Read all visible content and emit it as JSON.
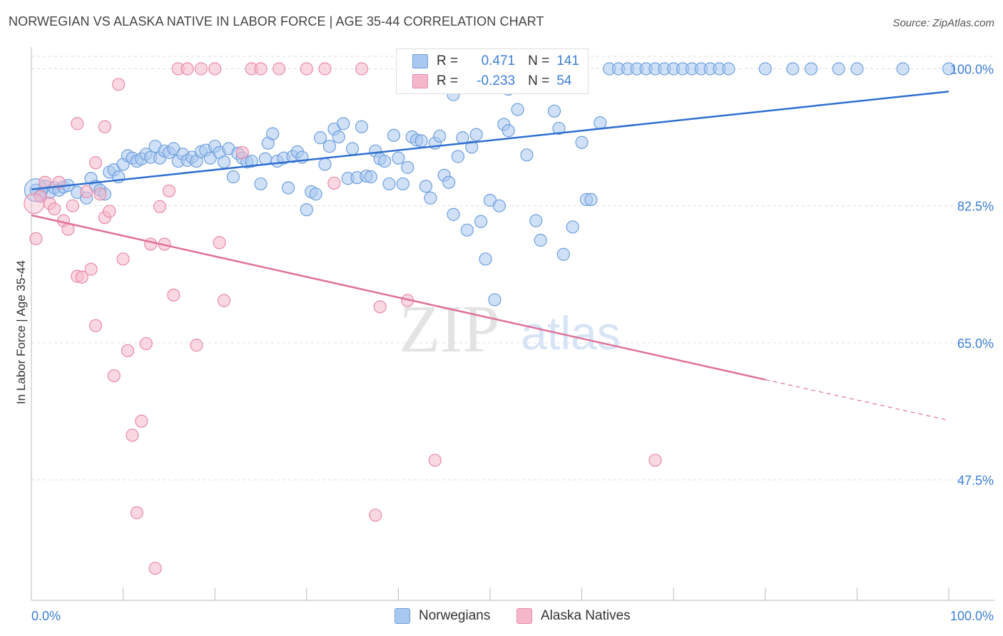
{
  "title": "NORWEGIAN VS ALASKA NATIVE IN LABOR FORCE | AGE 35-44 CORRELATION CHART",
  "source": "Source: ZipAtlas.com",
  "watermark": {
    "zip": "ZIP",
    "atlas": "atlas"
  },
  "legend": {
    "r_label": "R =",
    "n_label": "N =",
    "norwegians": {
      "r": "0.471",
      "n": "141"
    },
    "alaska": {
      "r": "-0.233",
      "n": "54"
    }
  },
  "colors": {
    "blue_fill": "#a9c8f0",
    "blue_stroke": "#6e9fdc",
    "blue_line": "#2f6fd0",
    "pink_fill": "#f5b8cb",
    "pink_stroke": "#e88aa8",
    "pink_line": "#e0719a",
    "tick_label": "#3d7fd6",
    "grid": "#dddddd"
  },
  "chart_data": {
    "type": "scatter",
    "title": "NORWEGIAN VS ALASKA NATIVE IN LABOR FORCE | AGE 35-44 CORRELATION CHART",
    "xlabel": "",
    "ylabel": "In Labor Force | Age 35-44",
    "xlim": [
      0,
      100
    ],
    "ylim": [
      32,
      102
    ],
    "x_tick_labels": [
      "0.0%",
      "100.0%"
    ],
    "y_ticks": [
      100,
      82.5,
      65,
      47.5
    ],
    "y_tick_labels": [
      "100.0%",
      "82.5%",
      "65.0%",
      "47.5%"
    ],
    "grid": true,
    "legend_position": "top-center",
    "series": [
      {
        "name": "Norwegians",
        "trend": {
          "x0": 0,
          "y0": 84.6,
          "x1": 100,
          "y1": 97.1
        },
        "points": [
          [
            0.5,
            84.5
          ],
          [
            1,
            83.8
          ],
          [
            1.5,
            85
          ],
          [
            2,
            84.2
          ],
          [
            2.5,
            84.8
          ],
          [
            3,
            84.5
          ],
          [
            3.5,
            84.9
          ],
          [
            4,
            85.1
          ],
          [
            5,
            84.2
          ],
          [
            6,
            83.5
          ],
          [
            6.5,
            86
          ],
          [
            7,
            85
          ],
          [
            7.5,
            84.5
          ],
          [
            8,
            84
          ],
          [
            8.5,
            86.8
          ],
          [
            9,
            87.1
          ],
          [
            9.5,
            86.2
          ],
          [
            10,
            87.8
          ],
          [
            10.5,
            88.9
          ],
          [
            11,
            88.6
          ],
          [
            11.5,
            88.2
          ],
          [
            12,
            88.5
          ],
          [
            12.5,
            89.1
          ],
          [
            13,
            88.7
          ],
          [
            13.5,
            90.1
          ],
          [
            14,
            88.6
          ],
          [
            14.5,
            89.5
          ],
          [
            15,
            89.3
          ],
          [
            15.5,
            89.8
          ],
          [
            16,
            88.2
          ],
          [
            16.5,
            89.1
          ],
          [
            17,
            88.3
          ],
          [
            17.5,
            88.7
          ],
          [
            18,
            88.2
          ],
          [
            18.5,
            89.4
          ],
          [
            19,
            89.6
          ],
          [
            19.5,
            88.6
          ],
          [
            20,
            90.1
          ],
          [
            20.5,
            89.3
          ],
          [
            21,
            88.1
          ],
          [
            21.5,
            89.8
          ],
          [
            22,
            86.2
          ],
          [
            22.5,
            89.2
          ],
          [
            23,
            88.6
          ],
          [
            23.5,
            88.1
          ],
          [
            24,
            88.2
          ],
          [
            25,
            85.3
          ],
          [
            25.5,
            88.5
          ],
          [
            25.8,
            90.5
          ],
          [
            26.3,
            91.7
          ],
          [
            26.8,
            88.2
          ],
          [
            27.5,
            88.6
          ],
          [
            28,
            84.8
          ],
          [
            28.5,
            88.8
          ],
          [
            29,
            89.4
          ],
          [
            29.5,
            88.7
          ],
          [
            30,
            82
          ],
          [
            30.5,
            84.3
          ],
          [
            31,
            84
          ],
          [
            31.5,
            91.2
          ],
          [
            32,
            87.8
          ],
          [
            32.5,
            90.1
          ],
          [
            33,
            92.3
          ],
          [
            33.5,
            91.3
          ],
          [
            34,
            93
          ],
          [
            34.5,
            86
          ],
          [
            35,
            89.8
          ],
          [
            35.5,
            86.1
          ],
          [
            36,
            92.6
          ],
          [
            36.5,
            86.3
          ],
          [
            37,
            86.2
          ],
          [
            37.5,
            89.5
          ],
          [
            38,
            88.5
          ],
          [
            38.5,
            88.2
          ],
          [
            39,
            85.3
          ],
          [
            39.5,
            91.5
          ],
          [
            40,
            88.6
          ],
          [
            40.5,
            85.3
          ],
          [
            41,
            87.4
          ],
          [
            41.5,
            91.3
          ],
          [
            42,
            90.9
          ],
          [
            42.5,
            90.8
          ],
          [
            43,
            85
          ],
          [
            43.5,
            83.5
          ],
          [
            44,
            90.5
          ],
          [
            44.5,
            91.4
          ],
          [
            45,
            86.4
          ],
          [
            45.5,
            85.5
          ],
          [
            46,
            81.4
          ],
          [
            46.5,
            88.8
          ],
          [
            47,
            91.2
          ],
          [
            47.5,
            79.4
          ],
          [
            48,
            90
          ],
          [
            48.5,
            91.6
          ],
          [
            49,
            80.5
          ],
          [
            49.5,
            75.7
          ],
          [
            50,
            83.2
          ],
          [
            50.5,
            70.5
          ],
          [
            51,
            82.5
          ],
          [
            51.5,
            92.9
          ],
          [
            52,
            92.1
          ],
          [
            53,
            94.8
          ],
          [
            54,
            89
          ],
          [
            55,
            80.6
          ],
          [
            55.5,
            78.1
          ],
          [
            57,
            94.6
          ],
          [
            57.5,
            92.4
          ],
          [
            58,
            76.3
          ],
          [
            59,
            79.8
          ],
          [
            60,
            90.6
          ],
          [
            60.5,
            83.3
          ],
          [
            61,
            83.3
          ],
          [
            62,
            93.1
          ],
          [
            63,
            100
          ],
          [
            64,
            100
          ],
          [
            65,
            100
          ],
          [
            66,
            100
          ],
          [
            67,
            100
          ],
          [
            68,
            100
          ],
          [
            69,
            100
          ],
          [
            70,
            100
          ],
          [
            71,
            100
          ],
          [
            72,
            100
          ],
          [
            73,
            100
          ],
          [
            74,
            100
          ],
          [
            75,
            100
          ],
          [
            76,
            100
          ],
          [
            80,
            100
          ],
          [
            83,
            100
          ],
          [
            85,
            100
          ],
          [
            88,
            100
          ],
          [
            90,
            100
          ],
          [
            95,
            100
          ],
          [
            100,
            100
          ],
          [
            46,
            96.7
          ],
          [
            45.5,
            99.5
          ],
          [
            48,
            97.8
          ],
          [
            49,
            98.4
          ],
          [
            50,
            99.1
          ],
          [
            51,
            98.9
          ],
          [
            52,
            97.4
          ]
        ]
      },
      {
        "name": "Alaska Natives",
        "trend": {
          "x0": 0,
          "y0": 81.3,
          "x1": 80,
          "y1": 60.3,
          "dash_to": {
            "x": 100,
            "y": 55.1
          }
        },
        "points": [
          [
            0.5,
            78.3
          ],
          [
            1,
            83.7
          ],
          [
            1.5,
            85.5
          ],
          [
            2,
            82.8
          ],
          [
            2.5,
            82.1
          ],
          [
            3,
            85.5
          ],
          [
            3.5,
            80.6
          ],
          [
            4,
            79.5
          ],
          [
            4.5,
            82.5
          ],
          [
            5,
            73.5
          ],
          [
            5.5,
            73.4
          ],
          [
            6,
            84.3
          ],
          [
            6.5,
            74.4
          ],
          [
            7,
            67.2
          ],
          [
            7.5,
            84
          ],
          [
            8,
            81
          ],
          [
            8.5,
            81.8
          ],
          [
            9,
            60.8
          ],
          [
            9.5,
            98
          ],
          [
            10,
            75.7
          ],
          [
            10.5,
            64
          ],
          [
            11,
            53.2
          ],
          [
            11.5,
            43.3
          ],
          [
            12,
            55
          ],
          [
            12.5,
            64.9
          ],
          [
            13,
            77.6
          ],
          [
            13.5,
            36.2
          ],
          [
            14,
            82.4
          ],
          [
            14.5,
            77.6
          ],
          [
            15,
            84.4
          ],
          [
            15.5,
            71.1
          ],
          [
            16,
            100
          ],
          [
            17,
            100
          ],
          [
            18,
            64.7
          ],
          [
            18.5,
            100
          ],
          [
            20,
            100
          ],
          [
            20.5,
            77.8
          ],
          [
            21,
            70.4
          ],
          [
            23,
            89.3
          ],
          [
            24,
            100
          ],
          [
            25,
            100
          ],
          [
            27,
            100
          ],
          [
            30,
            100
          ],
          [
            32,
            100
          ],
          [
            33,
            85.4
          ],
          [
            36,
            100
          ],
          [
            37.5,
            43
          ],
          [
            38,
            69.6
          ],
          [
            41,
            70.4
          ],
          [
            44,
            50
          ],
          [
            68,
            50
          ],
          [
            8,
            92.6
          ],
          [
            5,
            93
          ],
          [
            7,
            88
          ]
        ]
      }
    ]
  },
  "bottom_legend": [
    "Norwegians",
    "Alaska Natives"
  ]
}
